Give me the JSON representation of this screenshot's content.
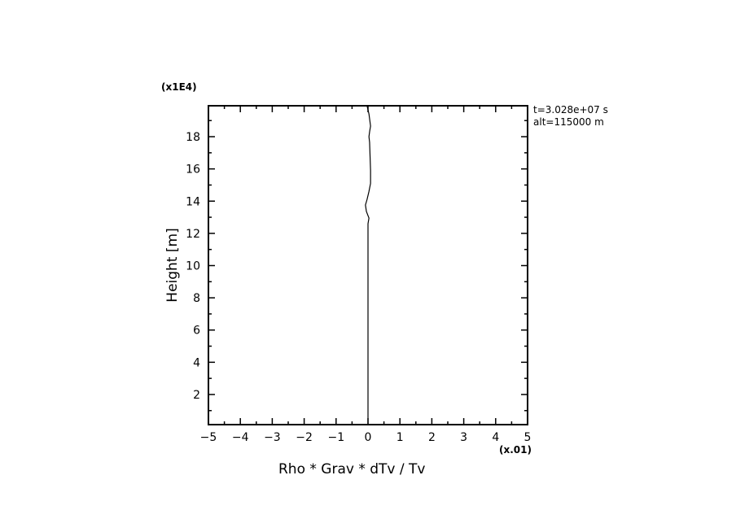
{
  "chart_data": {
    "type": "line",
    "xlabel": "Rho * Grav * dTv / Tv",
    "ylabel": "Height [m]",
    "x_multiplier": "(x.01)",
    "y_multiplier": "(x1E4)",
    "xlim": [
      -5,
      5
    ],
    "ylim": [
      0.13,
      19.92
    ],
    "xticks": [
      -5,
      -4,
      -3,
      -2,
      -1,
      0,
      1,
      2,
      3,
      4,
      5
    ],
    "yticks": [
      2,
      4,
      6,
      8,
      10,
      12,
      14,
      16,
      18
    ],
    "grid": false,
    "annotations": [
      "t=3.028e+07 s",
      "alt=115000 m"
    ],
    "series": [
      {
        "color": "#000000",
        "x": [
          0,
          0,
          0.03,
          0,
          -0.05,
          -0.08,
          -0.03,
          0.03,
          0.08,
          0.08,
          0.05,
          0.03,
          0.05,
          0.08,
          0.03,
          -0.03
        ],
        "y": [
          0.13,
          12.6,
          12.95,
          13.1,
          13.36,
          13.76,
          14.1,
          14.6,
          15.1,
          15.9,
          17.65,
          18.0,
          18.3,
          18.66,
          19.41,
          19.92
        ]
      }
    ]
  }
}
